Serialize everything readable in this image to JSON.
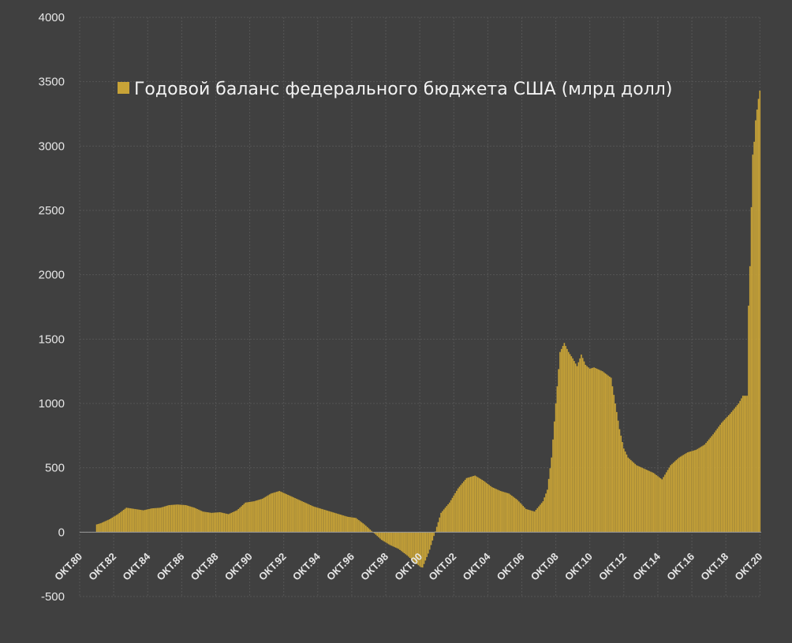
{
  "chart_data": {
    "type": "bar",
    "title": "",
    "legend": {
      "label": "Годовой баланс федерального бюджета США (млрд долл)",
      "position": "top-left",
      "color": "#c8a337"
    },
    "xlabel": "",
    "ylabel": "",
    "ylim": [
      -500,
      4000
    ],
    "yticks": [
      -500,
      0,
      500,
      1000,
      1500,
      2000,
      2500,
      3000,
      3500,
      4000
    ],
    "grid": true,
    "bar_color": "#c8a337",
    "x_start": 1980.75,
    "x_end": 2020.83,
    "x_tick_labels": [
      "ОКТ.80",
      "ОКТ.82",
      "ОКТ.84",
      "ОКТ.86",
      "ОКТ.88",
      "ОКТ.90",
      "ОКТ.92",
      "ОКТ.94",
      "ОКТ.96",
      "ОКТ.98",
      "ОКТ.00",
      "ОКТ.02",
      "ОКТ.04",
      "ОКТ.06",
      "ОКТ.08",
      "ОКТ.10",
      "ОКТ.12",
      "ОКТ.14",
      "ОКТ.16",
      "ОКТ.18",
      "ОКТ.20"
    ],
    "series": [
      {
        "name": "Годовой баланс федерального бюджета США (млрд долл)",
        "x": [
          1981.75,
          1982.0,
          1982.5,
          1983.0,
          1983.5,
          1984.0,
          1984.5,
          1985.0,
          1985.5,
          1986.0,
          1986.5,
          1987.0,
          1987.5,
          1988.0,
          1988.5,
          1989.0,
          1989.5,
          1990.0,
          1990.5,
          1991.0,
          1991.5,
          1992.0,
          1992.5,
          1993.0,
          1993.5,
          1994.0,
          1994.5,
          1995.0,
          1995.5,
          1996.0,
          1996.5,
          1997.0,
          1997.5,
          1998.0,
          1998.5,
          1999.0,
          1999.5,
          2000.0,
          2000.5,
          2000.9,
          2001.3,
          2001.7,
          2002.0,
          2002.5,
          2003.0,
          2003.5,
          2004.0,
          2004.5,
          2005.0,
          2005.5,
          2006.0,
          2006.5,
          2007.0,
          2007.5,
          2008.0,
          2008.25,
          2008.5,
          2008.75,
          2009.0,
          2009.25,
          2009.5,
          2009.75,
          2010.0,
          2010.25,
          2010.5,
          2010.75,
          2011.0,
          2011.5,
          2012.0,
          2012.25,
          2012.5,
          2012.75,
          2013.0,
          2013.5,
          2014.0,
          2014.5,
          2015.0,
          2015.5,
          2016.0,
          2016.5,
          2017.0,
          2017.5,
          2018.0,
          2018.5,
          2019.0,
          2019.5,
          2019.75,
          2020.0,
          2020.1,
          2020.2,
          2020.3,
          2020.4,
          2020.5,
          2020.6,
          2020.7,
          2020.83
        ],
        "values": [
          60,
          70,
          100,
          140,
          190,
          180,
          170,
          185,
          190,
          210,
          215,
          210,
          190,
          160,
          150,
          155,
          140,
          170,
          230,
          240,
          260,
          300,
          320,
          290,
          260,
          230,
          200,
          180,
          160,
          140,
          120,
          110,
          60,
          0,
          -60,
          -100,
          -130,
          -180,
          -240,
          -280,
          -150,
          20,
          150,
          230,
          340,
          420,
          440,
          400,
          350,
          320,
          300,
          250,
          180,
          160,
          240,
          330,
          580,
          1000,
          1400,
          1470,
          1400,
          1350,
          1290,
          1380,
          1300,
          1270,
          1280,
          1250,
          1200,
          1000,
          800,
          650,
          580,
          520,
          490,
          460,
          410,
          520,
          580,
          620,
          640,
          680,
          760,
          850,
          920,
          1000,
          1060,
          1060,
          1900,
          2150,
          2900,
          3000,
          3200,
          3300,
          3400,
          3480
        ]
      }
    ]
  }
}
